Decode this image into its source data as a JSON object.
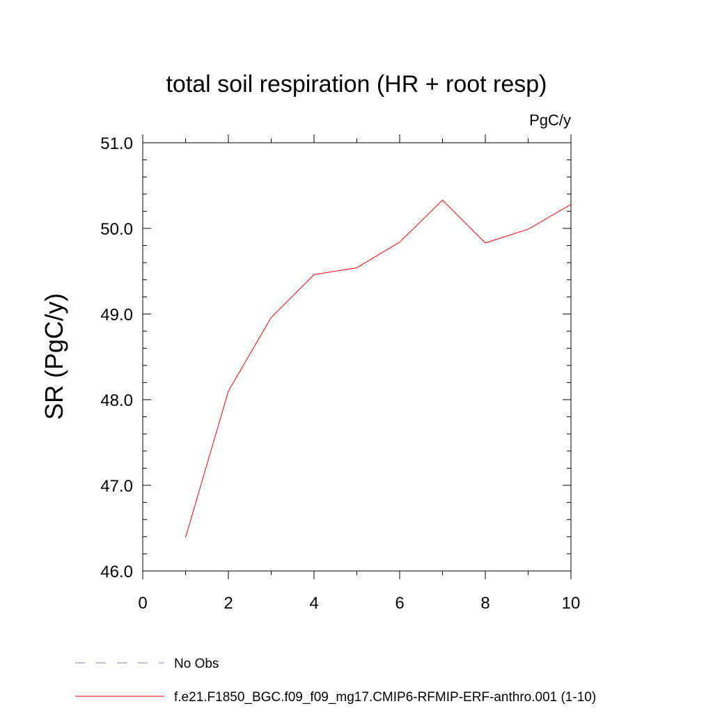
{
  "chart_data": {
    "type": "line",
    "title": "total soil respiration (HR + root resp)",
    "units_label": "PgC/y",
    "xlabel": "",
    "ylabel": "SR  (PgC/y)",
    "xlim": [
      0,
      10
    ],
    "ylim": [
      46.0,
      51.0
    ],
    "x_ticks": [
      0,
      2,
      4,
      6,
      8,
      10
    ],
    "x_tick_labels": [
      "0",
      "2",
      "4",
      "6",
      "8",
      "10"
    ],
    "y_ticks": [
      46.0,
      47.0,
      48.0,
      49.0,
      50.0,
      51.0
    ],
    "y_tick_labels": [
      "46.0",
      "47.0",
      "48.0",
      "49.0",
      "50.0",
      "51.0"
    ],
    "grid": false,
    "series": [
      {
        "name": "f.e21.F1850_BGC.f09_f09_mg17.CMIP6-RFMIP-ERF-anthro.001 (1-10)",
        "color": "#ff0000",
        "x": [
          1,
          2,
          3,
          4,
          5,
          6,
          7,
          8,
          9,
          10
        ],
        "values": [
          46.39,
          48.1,
          48.96,
          49.46,
          49.54,
          49.84,
          50.33,
          49.83,
          49.99,
          50.28
        ]
      }
    ],
    "legend": [
      {
        "label": "No Obs",
        "color": "#8878c8",
        "style": "dashed"
      },
      {
        "label": "f.e21.F1850_BGC.f09_f09_mg17.CMIP6-RFMIP-ERF-anthro.001 (1-10)",
        "color": "#ff0000",
        "style": "solid"
      }
    ],
    "legend_placement": "bottom-left"
  }
}
